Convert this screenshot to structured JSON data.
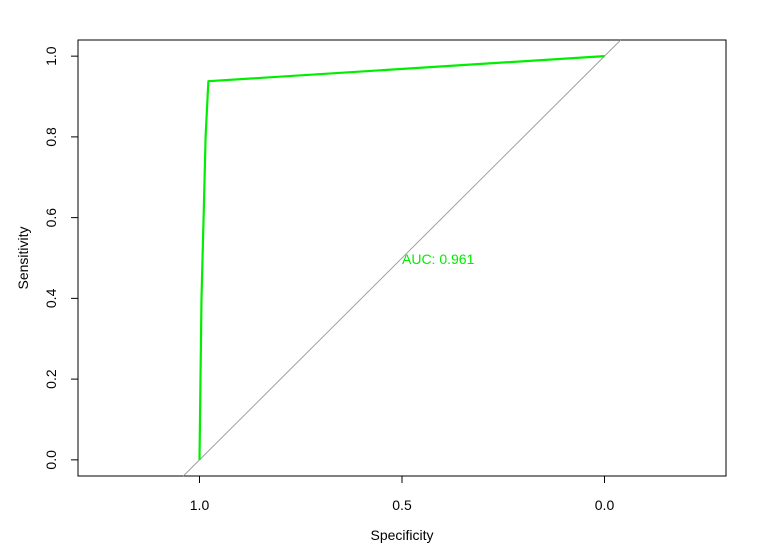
{
  "chart_data": {
    "type": "line",
    "xlabel": "Specificity",
    "ylabel": "Sensitivity",
    "xlim": [
      1.3,
      -0.3
    ],
    "ylim": [
      -0.04,
      1.04
    ],
    "x_reversed": true,
    "grid": false,
    "x_ticks": [
      1.0,
      0.5,
      0.0
    ],
    "x_tick_labels": [
      "1.0",
      "0.5",
      "0.0"
    ],
    "y_ticks": [
      0.0,
      0.2,
      0.4,
      0.6,
      0.8,
      1.0
    ],
    "y_tick_labels": [
      "0.0",
      "0.2",
      "0.4",
      "0.6",
      "0.8",
      "1.0"
    ],
    "series": [
      {
        "color": "#00ee00",
        "x": [
          1.0,
          1.0,
          0.995,
          0.99,
          0.985,
          0.98,
          0.978,
          0.0
        ],
        "y": [
          0.0,
          0.0,
          0.4,
          0.6,
          0.8,
          0.9,
          0.938,
          1.0
        ]
      }
    ],
    "reference_line": {
      "color": "#a0a0a0",
      "from": [
        1.0,
        0.0
      ],
      "to": [
        0.0,
        1.0
      ]
    },
    "annotations": [
      {
        "text": "AUC: 0.961",
        "x": 0.5,
        "y": 0.48,
        "color": "#00ee00"
      }
    ]
  }
}
